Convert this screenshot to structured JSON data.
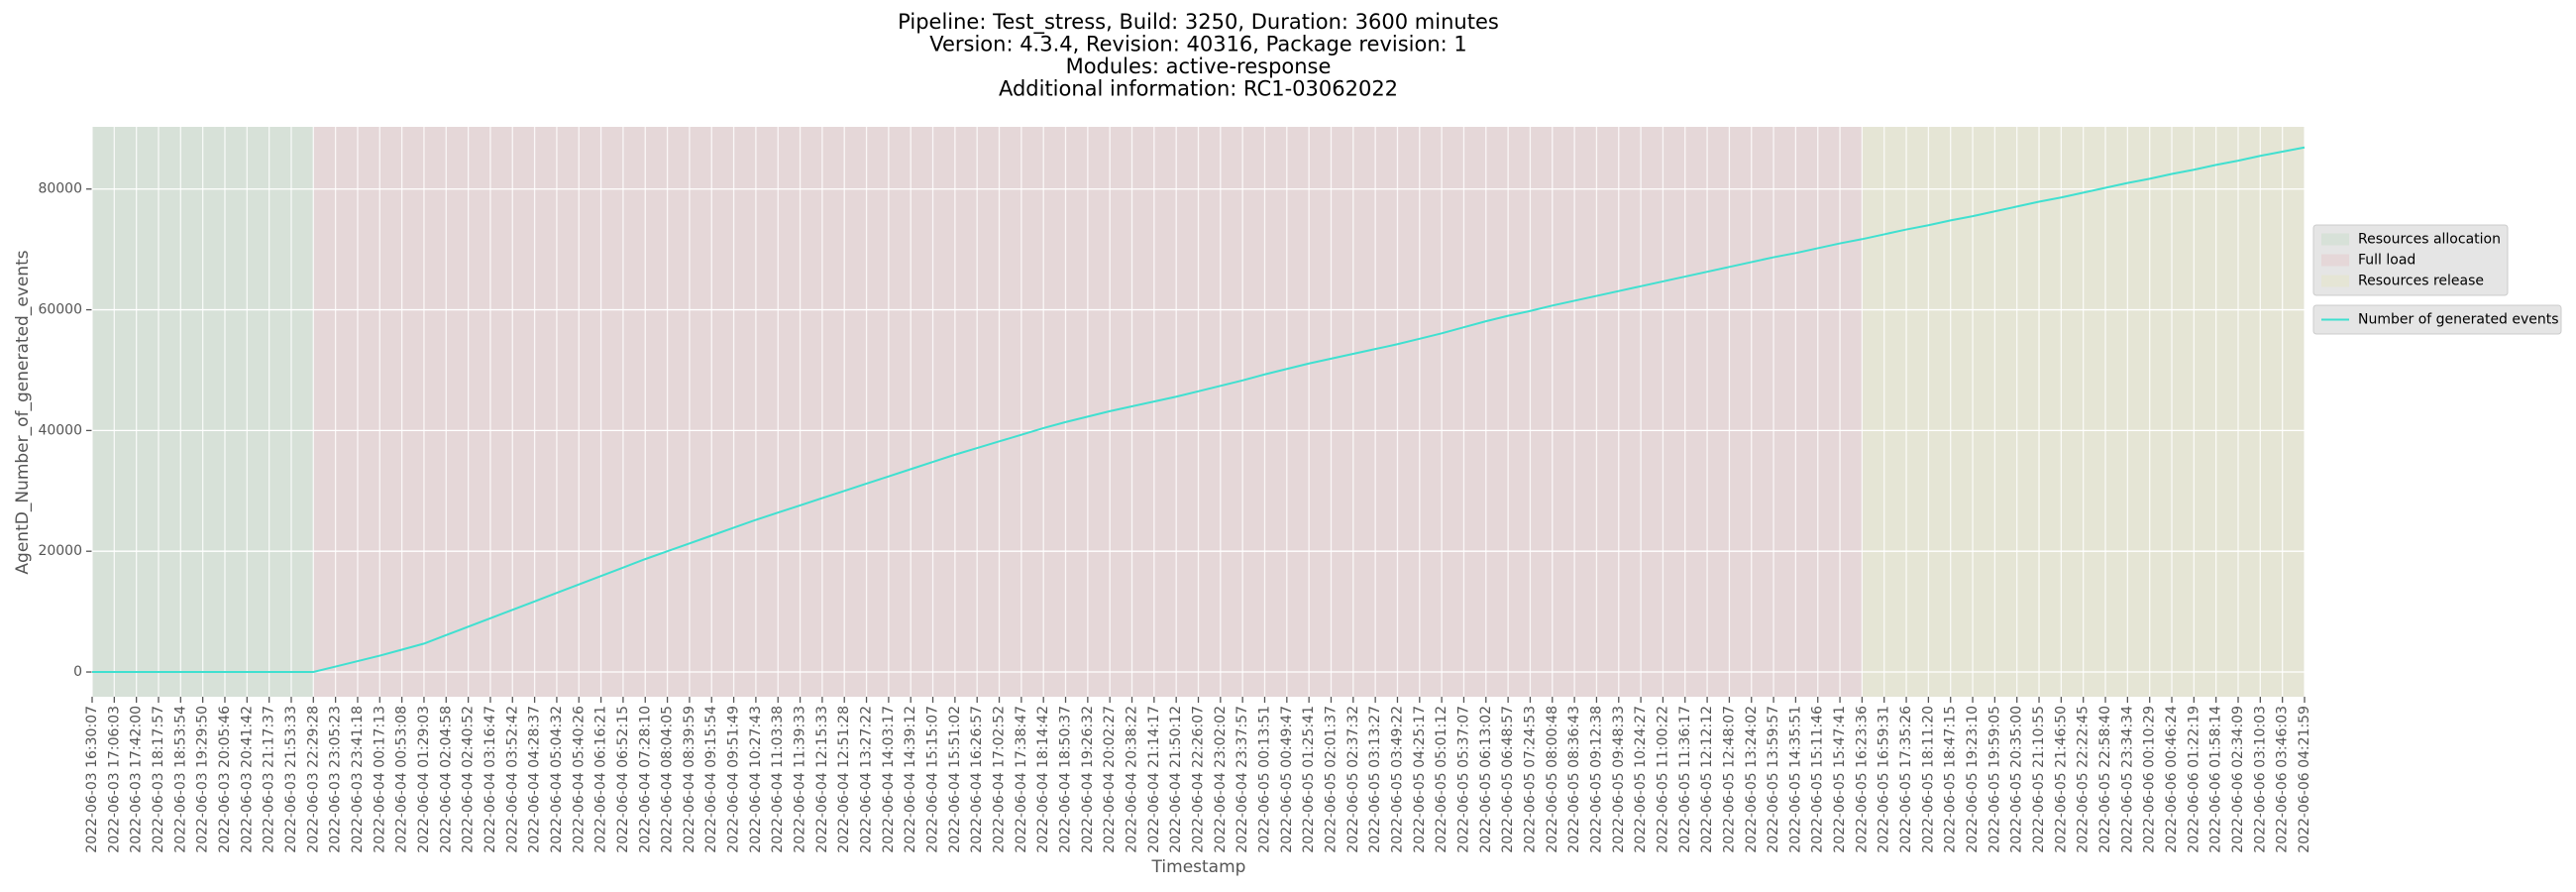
{
  "chart_data": {
    "type": "line",
    "title": [
      "Pipeline: Test_stress, Build: 3250, Duration: 3600 minutes",
      "Version: 4.3.4, Revision: 40316, Package revision: 1",
      "Modules: active-response",
      "Additional information: RC1-03062022"
    ],
    "x_label": "Timestamp",
    "y_label": "AgentD_Number_of_generated_events",
    "categories": [
      "2022-06-03 16:30:07",
      "2022-06-03 17:06:03",
      "2022-06-03 17:42:00",
      "2022-06-03 18:17:57",
      "2022-06-03 18:53:54",
      "2022-06-03 19:29:50",
      "2022-06-03 20:05:46",
      "2022-06-03 20:41:42",
      "2022-06-03 21:17:37",
      "2022-06-03 21:53:33",
      "2022-06-03 22:29:28",
      "2022-06-03 23:05:23",
      "2022-06-03 23:41:18",
      "2022-06-04 00:17:13",
      "2022-06-04 00:53:08",
      "2022-06-04 01:29:03",
      "2022-06-04 02:04:58",
      "2022-06-04 02:40:52",
      "2022-06-04 03:16:47",
      "2022-06-04 03:52:42",
      "2022-06-04 04:28:37",
      "2022-06-04 05:04:32",
      "2022-06-04 05:40:26",
      "2022-06-04 06:16:21",
      "2022-06-04 06:52:15",
      "2022-06-04 07:28:10",
      "2022-06-04 08:04:05",
      "2022-06-04 08:39:59",
      "2022-06-04 09:15:54",
      "2022-06-04 09:51:49",
      "2022-06-04 10:27:43",
      "2022-06-04 11:03:38",
      "2022-06-04 11:39:33",
      "2022-06-04 12:15:33",
      "2022-06-04 12:51:28",
      "2022-06-04 13:27:22",
      "2022-06-04 14:03:17",
      "2022-06-04 14:39:12",
      "2022-06-04 15:15:07",
      "2022-06-04 15:51:02",
      "2022-06-04 16:26:57",
      "2022-06-04 17:02:52",
      "2022-06-04 17:38:47",
      "2022-06-04 18:14:42",
      "2022-06-04 18:50:37",
      "2022-06-04 19:26:32",
      "2022-06-04 20:02:27",
      "2022-06-04 20:38:22",
      "2022-06-04 21:14:17",
      "2022-06-04 21:50:12",
      "2022-06-04 22:26:07",
      "2022-06-04 23:02:02",
      "2022-06-04 23:37:57",
      "2022-06-05 00:13:51",
      "2022-06-05 00:49:47",
      "2022-06-05 01:25:41",
      "2022-06-05 02:01:37",
      "2022-06-05 02:37:32",
      "2022-06-05 03:13:27",
      "2022-06-05 03:49:22",
      "2022-06-05 04:25:17",
      "2022-06-05 05:01:12",
      "2022-06-05 05:37:07",
      "2022-06-05 06:13:02",
      "2022-06-05 06:48:57",
      "2022-06-05 07:24:53",
      "2022-06-05 08:00:48",
      "2022-06-05 08:36:43",
      "2022-06-05 09:12:38",
      "2022-06-05 09:48:33",
      "2022-06-05 10:24:27",
      "2022-06-05 11:00:22",
      "2022-06-05 11:36:17",
      "2022-06-05 12:12:12",
      "2022-06-05 12:48:07",
      "2022-06-05 13:24:02",
      "2022-06-05 13:59:57",
      "2022-06-05 14:35:51",
      "2022-06-05 15:11:46",
      "2022-06-05 15:47:41",
      "2022-06-05 16:23:36",
      "2022-06-05 16:59:31",
      "2022-06-05 17:35:26",
      "2022-06-05 18:11:20",
      "2022-06-05 18:47:15",
      "2022-06-05 19:23:10",
      "2022-06-05 19:59:05",
      "2022-06-05 20:35:00",
      "2022-06-05 21:10:55",
      "2022-06-05 21:46:50",
      "2022-06-05 22:22:45",
      "2022-06-05 22:58:40",
      "2022-06-05 23:34:34",
      "2022-06-06 00:10:29",
      "2022-06-06 00:46:24",
      "2022-06-06 01:22:19",
      "2022-06-06 01:58:14",
      "2022-06-06 02:34:09",
      "2022-06-06 03:10:03",
      "2022-06-06 03:46:03",
      "2022-06-06 04:21:59"
    ],
    "series": [
      {
        "name": "Number of generated events",
        "color": "#40e0d0",
        "values": [
          0,
          0,
          0,
          0,
          0,
          0,
          0,
          0,
          0,
          0,
          0,
          900,
          1800,
          2700,
          3700,
          4700,
          6100,
          7500,
          8900,
          10300,
          11700,
          13100,
          14500,
          15900,
          17300,
          18700,
          20000,
          21300,
          22600,
          23900,
          25200,
          26400,
          27600,
          28800,
          30000,
          31200,
          32400,
          33600,
          34800,
          36000,
          37100,
          38200,
          39300,
          40400,
          41400,
          42300,
          43200,
          44000,
          44800,
          45600,
          46500,
          47400,
          48300,
          49300,
          50200,
          51100,
          51900,
          52700,
          53500,
          54300,
          55200,
          56100,
          57100,
          58100,
          59000,
          59800,
          60700,
          61500,
          62300,
          63100,
          63900,
          64700,
          65500,
          66300,
          67100,
          67900,
          68700,
          69400,
          70200,
          71000,
          71700,
          72500,
          73300,
          74000,
          74800,
          75500,
          76300,
          77100,
          77900,
          78600,
          79400,
          80200,
          81000,
          81700,
          82500,
          83200,
          84000,
          84700,
          85500,
          86200,
          86900
        ]
      }
    ],
    "spans": [
      {
        "name": "Resources allocation",
        "color": "#d7e1d8",
        "start": "2022-06-03 16:30:07",
        "end": "2022-06-03 22:29:28"
      },
      {
        "name": "Full load",
        "color": "#e5d7d8",
        "start": "2022-06-03 22:29:28",
        "end": "2022-06-05 16:23:36"
      },
      {
        "name": "Resources release",
        "color": "#e5e5d5",
        "start": "2022-06-05 16:23:36",
        "end": "2022-06-06 04:21:59"
      }
    ],
    "ylim": [
      -4100,
      90300
    ],
    "yticks": [
      0,
      20000,
      40000,
      60000,
      80000
    ],
    "grid": true,
    "legend": "right"
  }
}
